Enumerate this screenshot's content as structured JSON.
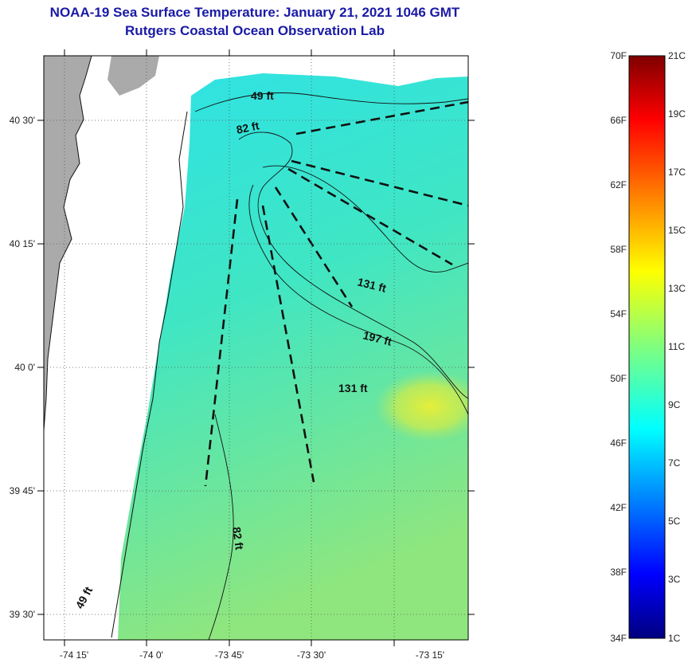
{
  "title": "NOAA-19 Sea Surface Temperature:  January 21, 2021 1046 GMT",
  "subtitle": "Rutgers Coastal Ocean Observation Lab",
  "map": {
    "lat_ticks": [
      "40 30'",
      "40 15'",
      "40 0'",
      "39 45'",
      "39 30'"
    ],
    "lon_ticks": [
      "-74 15'",
      "-74 0'",
      "-73 45'",
      "-73 30'",
      "-73 15'"
    ],
    "depth_labels": [
      "49 ft",
      "82 ft",
      "131 ft",
      "197 ft",
      "131 ft",
      "82 ft",
      "49 ft"
    ],
    "land_color": "#aaaaaa"
  },
  "colorbar": {
    "fahrenheit": [
      "70F",
      "66F",
      "62F",
      "58F",
      "54F",
      "50F",
      "46F",
      "42F",
      "38F",
      "34F"
    ],
    "celsius": [
      "21C",
      "19C",
      "17C",
      "15C",
      "13C",
      "11C",
      "9C",
      "7C",
      "5C",
      "3C",
      "1C"
    ],
    "colors": [
      "#00007f",
      "#0000ff",
      "#007fff",
      "#00ffff",
      "#7fff7f",
      "#ffff00",
      "#ff7f00",
      "#ff0000",
      "#7f0000"
    ]
  }
}
